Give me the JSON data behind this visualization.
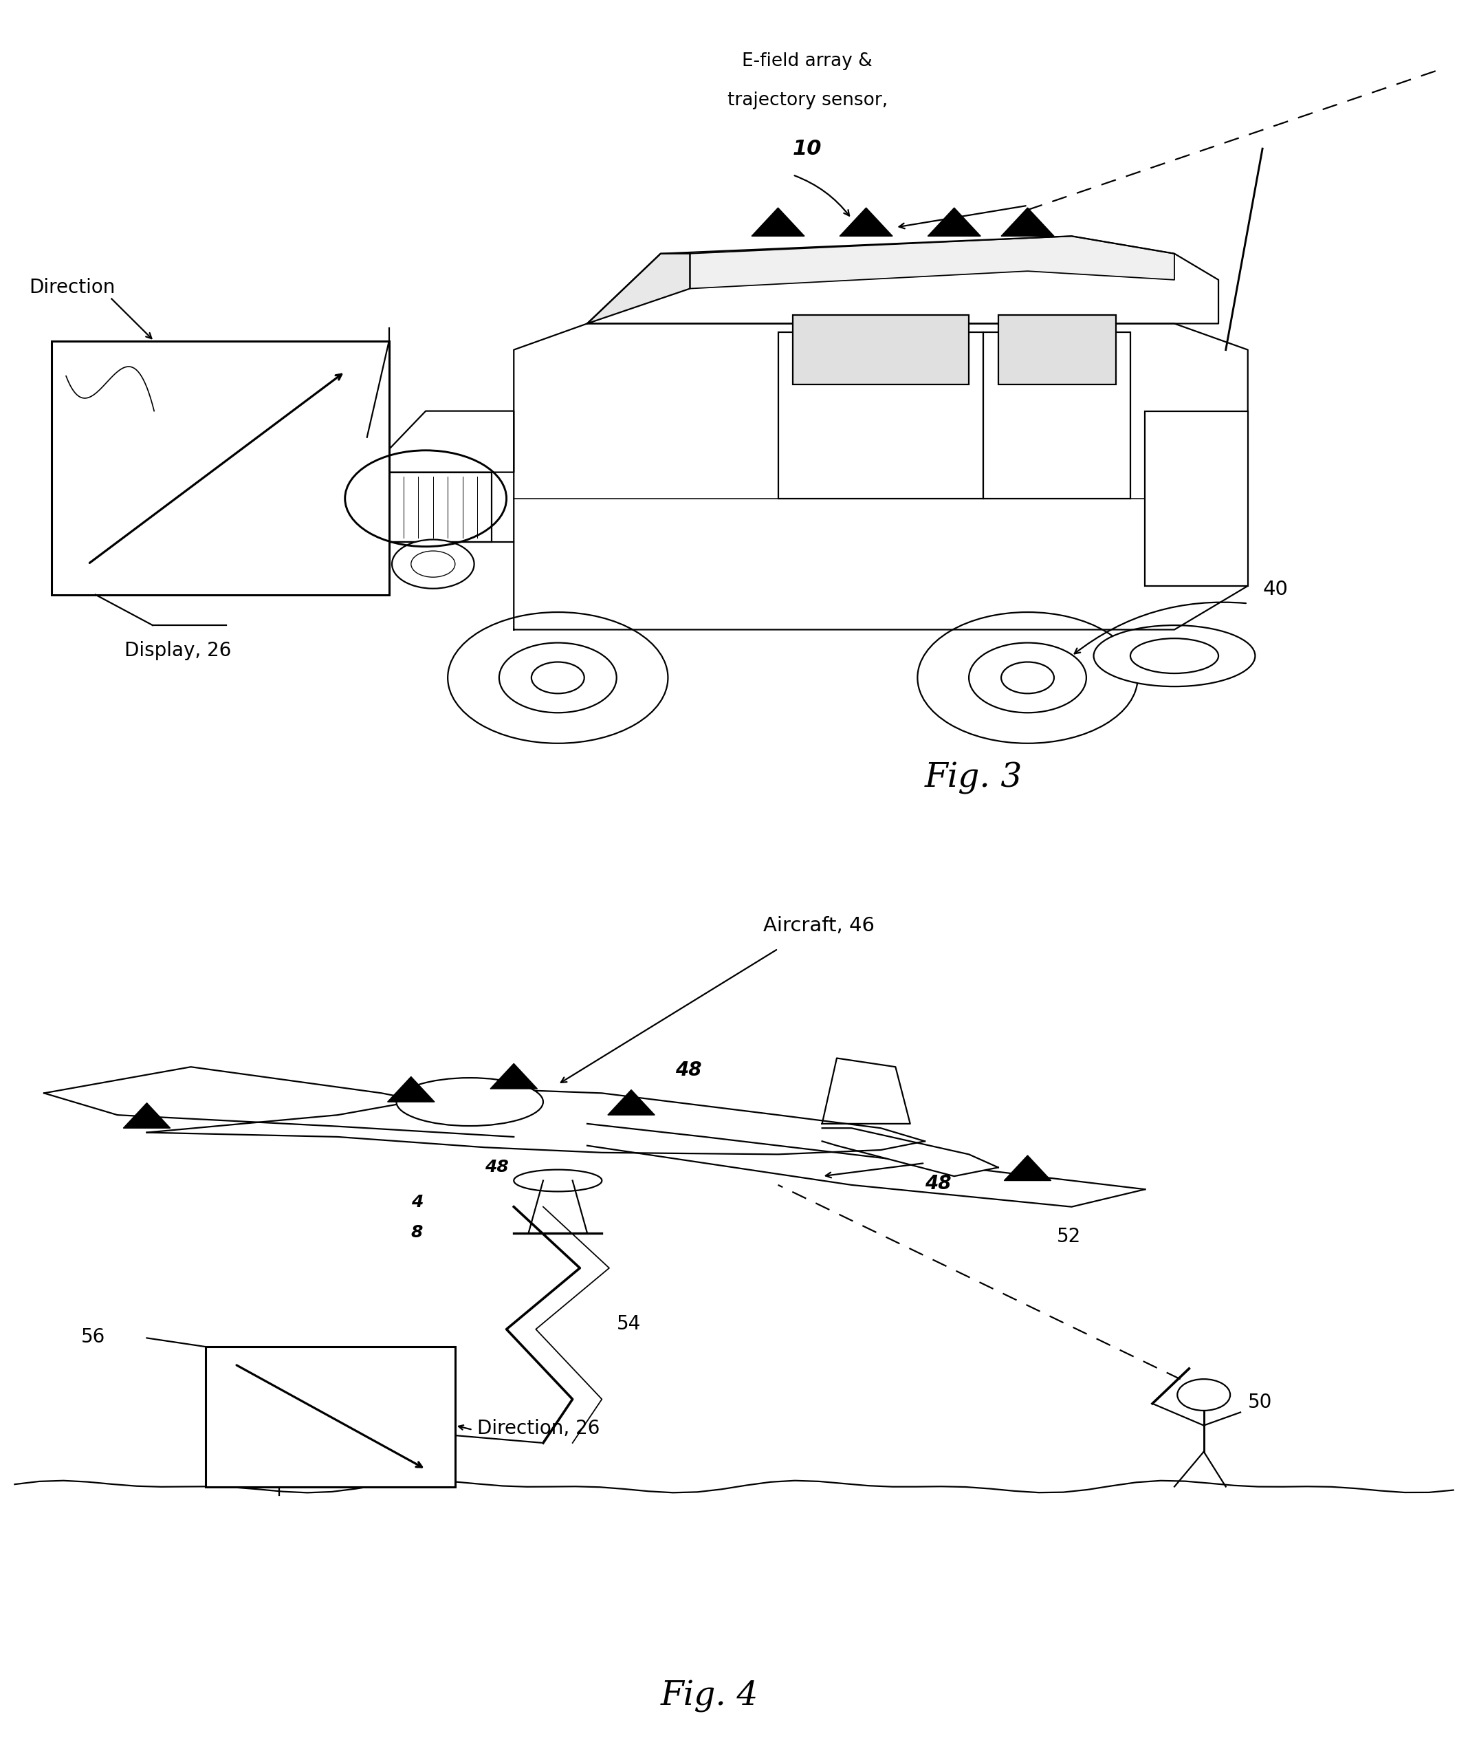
{
  "fig_width": 21.35,
  "fig_height": 25.43,
  "bg_color": "#ffffff",
  "fig3_label": "Fig. 3",
  "fig4_label": "Fig. 4",
  "fig3_annotations": {
    "efield_line1": "E-field array &",
    "efield_line2": "trajectory sensor,",
    "efield_num": "10",
    "direction_label": "Direction",
    "display_label": "Display, 26",
    "vehicle_label": "40"
  },
  "fig4_annotations": {
    "aircraft_label": "Aircraft, 46",
    "lightning_label": "54",
    "dashed_label": "52",
    "direction_label": "Direction, 26",
    "shooter_label": "50",
    "box_label": "56"
  }
}
